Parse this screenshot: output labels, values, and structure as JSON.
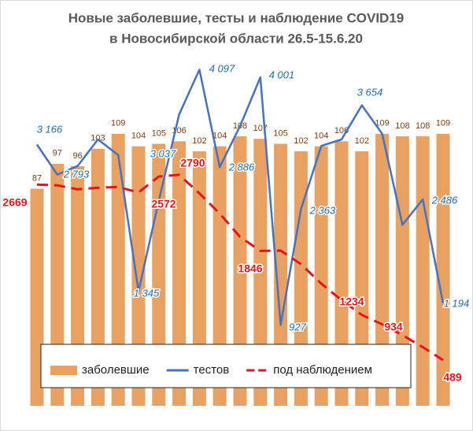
{
  "chart_data": {
    "type": "bar",
    "title": [
      "Новые заболевшие, тесты  и наблюдение COVID19",
      "в Новосибирской  области 26.5-15.6.20"
    ],
    "categories": [
      null,
      null,
      null,
      null,
      null,
      null,
      null,
      null,
      null,
      null,
      null,
      null,
      null,
      null,
      null,
      null,
      null,
      null,
      null,
      null,
      null
    ],
    "ylim": [
      0,
      150
    ],
    "y2lim": [
      0,
      4600
    ],
    "grid": false,
    "legend": "bottom",
    "series": [
      {
        "name": "заболевшие",
        "type": "bar",
        "color": "#e8a160",
        "values": [
          87,
          97,
          96,
          103,
          109,
          104,
          105,
          106,
          102,
          104,
          108,
          107,
          105,
          102,
          104,
          106,
          102,
          109,
          108,
          108,
          109
        ]
      },
      {
        "name": "тестов",
        "type": "line",
        "axis": "y2",
        "color": "#4472c4",
        "values": [
          3166,
          2793,
          2900,
          3230,
          3037,
          1345,
          2470,
          3540,
          4097,
          2886,
          3395,
          4001,
          927,
          2363,
          3150,
          3230,
          3654,
          3300,
          2170,
          2486,
          1194
        ],
        "value_labels": [
          "3 166",
          "2 793",
          null,
          null,
          "3 037",
          "1 345",
          null,
          null,
          "4 097",
          "2 886",
          null,
          "4 001",
          "927",
          "2 363",
          null,
          null,
          "3 654",
          null,
          null,
          "2 486",
          "1 194"
        ]
      },
      {
        "name": "под наблюдением",
        "type": "line",
        "axis": "y2",
        "dashed": true,
        "color": "#e8141c",
        "values": [
          2669,
          2660,
          2610,
          2630,
          2640,
          2572,
          2770,
          2790,
          2560,
          2310,
          2020,
          1846,
          1850,
          1680,
          1440,
          1234,
          1050,
          934,
          800,
          650,
          489
        ],
        "value_labels": [
          "2669",
          null,
          null,
          null,
          null,
          "2572",
          null,
          "2790",
          null,
          null,
          null,
          "1846",
          null,
          null,
          null,
          "1234",
          null,
          "934",
          null,
          null,
          "489"
        ]
      }
    ]
  }
}
